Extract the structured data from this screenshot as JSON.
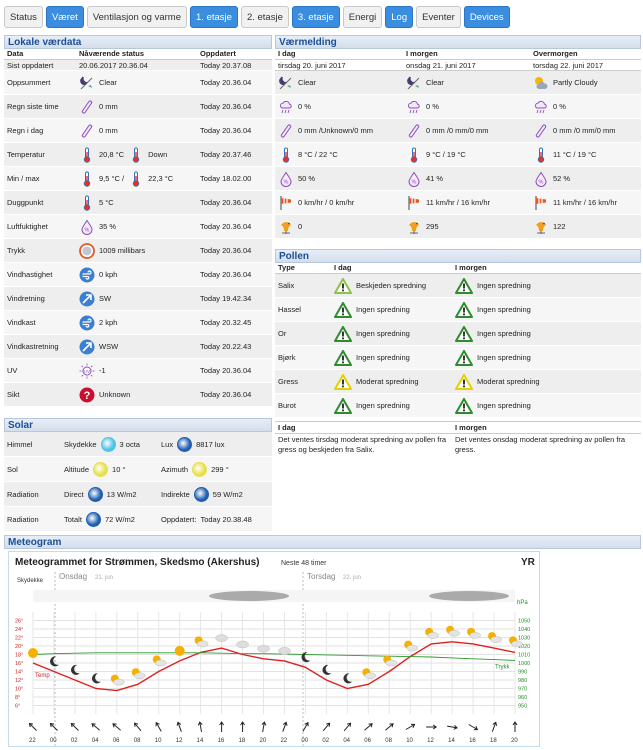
{
  "nav": {
    "tabs": [
      "Status",
      "Været",
      "Ventilasjon og varme",
      "1. etasje",
      "2. etasje",
      "3. etasje",
      "Energi",
      "Log",
      "Eventer",
      "Devices"
    ],
    "active": [
      1,
      3,
      5,
      7,
      9
    ]
  },
  "local": {
    "title": "Lokale værdata",
    "headers": [
      "Data",
      "Nåværende status",
      "Oppdatert"
    ],
    "rows": [
      {
        "label": "Sist oppdatert",
        "value": "20.06.2017 20.36.04",
        "updated": "Today 20.37.08",
        "icon": ""
      },
      {
        "label": "Oppsummert",
        "value": "Clear",
        "updated": "Today 20.36.04",
        "icon": "moon-clear-icon"
      },
      {
        "label": "Regn siste time",
        "value": "0 mm",
        "updated": "Today 20.36.04",
        "icon": "rain-gauge-icon"
      },
      {
        "label": "Regn i dag",
        "value": "0 mm",
        "updated": "Today 20.36.04",
        "icon": "rain-gauge-icon"
      },
      {
        "label": "Temperatur",
        "value": "20,8 °C",
        "value2": "Down",
        "updated": "Today 20.37.46",
        "icon": "thermometer-icon"
      },
      {
        "label": "Min / max",
        "value": "9,5 °C  /",
        "value2": "22,3 °C",
        "updated": "Today 18.02.00",
        "icon": "thermometer-icon"
      },
      {
        "label": "Duggpunkt",
        "value": "5 °C",
        "updated": "Today 20.36.04",
        "icon": "thermometer-icon"
      },
      {
        "label": "Luftfuktighet",
        "value": "35 %",
        "updated": "Today 20.36.04",
        "icon": "humidity-icon"
      },
      {
        "label": "Trykk",
        "value": "1009 millibars",
        "updated": "Today 20.36.04",
        "icon": "barometer-icon"
      },
      {
        "label": "Vindhastighet",
        "value": "0 kph",
        "updated": "Today 20.36.04",
        "icon": "wind-speed-icon"
      },
      {
        "label": "Vindretning",
        "value": "SW",
        "updated": "Today 19.42.34",
        "icon": "wind-direction-icon"
      },
      {
        "label": "Vindkast",
        "value": "2 kph",
        "updated": "Today 20.32.45",
        "icon": "wind-speed-icon"
      },
      {
        "label": "Vindkastretning",
        "value": "WSW",
        "updated": "Today 20.22.43",
        "icon": "wind-direction-icon"
      },
      {
        "label": "UV",
        "value": "-1",
        "updated": "Today 20.36.04",
        "icon": "uv-icon"
      },
      {
        "label": "Sikt",
        "value": "Unknown",
        "updated": "Today 20.36.04",
        "icon": "question-icon"
      }
    ]
  },
  "forecast": {
    "title": "Værmelding",
    "headers": [
      "I dag",
      "I morgen",
      "Overmorgen"
    ],
    "dates": [
      "tirsdag 20. juni 2017",
      "onsdag 21. juni 2017",
      "torsdag 22. juni 2017"
    ],
    "rows": [
      {
        "icon": "moon-clear-icon",
        "values": [
          "Clear",
          "Clear",
          "Partly Cloudy"
        ]
      },
      {
        "icon": "rain-cloud-icon",
        "values": [
          "0 %",
          "0 %",
          "0 %"
        ]
      },
      {
        "icon": "rain-gauge-icon",
        "values": [
          "0 mm /Unknown/0 mm",
          "0 mm /0 mm/0 mm",
          "0 mm /0 mm/0 mm"
        ]
      },
      {
        "icon": "thermometer-icon",
        "values": [
          "8 °C / 22 °C",
          "9 °C / 19 °C",
          "11 °C / 19 °C"
        ]
      },
      {
        "icon": "humidity-icon",
        "values": [
          "50 %",
          "41 %",
          "52 %"
        ]
      },
      {
        "icon": "windsock-icon",
        "values": [
          "0 km/hr  /  0 km/hr",
          "11 km/hr  /  16 km/hr",
          "11 km/hr  /  16 km/hr"
        ]
      },
      {
        "icon": "wind-vane-icon",
        "values": [
          "0",
          "295",
          "122"
        ]
      }
    ]
  },
  "pollen": {
    "title": "Pollen",
    "headers": [
      "Type",
      "I dag",
      "I morgen"
    ],
    "rows": [
      {
        "type": "Salix",
        "today": "Beskjeden spredning",
        "tomorrow": "Ingen spredning",
        "tc": "#8bc34a",
        "mc": "#2e8b2e"
      },
      {
        "type": "Hassel",
        "today": "Ingen spredning",
        "tomorrow": "Ingen spredning",
        "tc": "#2e8b2e",
        "mc": "#2e8b2e"
      },
      {
        "type": "Or",
        "today": "Ingen spredning",
        "tomorrow": "Ingen spredning",
        "tc": "#2e8b2e",
        "mc": "#2e8b2e"
      },
      {
        "type": "Bjørk",
        "today": "Ingen spredning",
        "tomorrow": "Ingen spredning",
        "tc": "#2e8b2e",
        "mc": "#2e8b2e"
      },
      {
        "type": "Gress",
        "today": "Moderat spredning",
        "tomorrow": "Moderat spredning",
        "tc": "#e5d000",
        "mc": "#e5d000"
      },
      {
        "type": "Burot",
        "today": "Ingen spredning",
        "tomorrow": "Ingen spredning",
        "tc": "#2e8b2e",
        "mc": "#2e8b2e"
      }
    ],
    "text_headers": [
      "I dag",
      "I morgen"
    ],
    "texts": [
      "Det ventes tirsdag moderat spredning av pollen fra gress og beskjeden fra Salix.",
      "Det ventes onsdag moderat spredning av pollen fra gress."
    ]
  },
  "solar": {
    "title": "Solar",
    "rows": [
      {
        "label": "Himmel",
        "a_label": "Skydekke",
        "a_value": "3 octa",
        "b_label": "Lux",
        "b_value": "8817 lux",
        "a_color": "#4fc3e8",
        "b_color": "#1f5fb0"
      },
      {
        "label": "Sol",
        "a_label": "Altitude",
        "a_value": "10 °",
        "b_label": "Azimuth",
        "b_value": "299 °",
        "a_color": "#e6e04a",
        "b_color": "#e6e04a"
      },
      {
        "label": "Radiation",
        "a_label": "Direct",
        "a_value": "13 W/m2",
        "b_label": "Indirekte",
        "b_value": "59 W/m2",
        "a_color": "#1f5fb0",
        "b_color": "#1f5fb0"
      },
      {
        "label": "Radiation",
        "a_label": "Totalt",
        "a_value": "72 W/m2",
        "b_label": "Oppdatert:",
        "b_value": "Today 20.38.48",
        "a_color": "#1f5fb0",
        "b_color": ""
      }
    ]
  },
  "meteogram": {
    "title": "Meteogram",
    "heading": "Meteogrammet for Strømmen, Skedsmo (Akershus)",
    "sub": "Neste 48 timer",
    "logo": "YR",
    "cloud_label": "Skydekke",
    "day1": "Onsdag",
    "day1_date": "21. jun",
    "day2": "Torsdag",
    "day2_date": "22. jun",
    "temp_label": "Temp",
    "pressure_label": "Trykk",
    "hpa": "hPa",
    "chart_data": {
      "type": "line",
      "x": [
        "22",
        "00",
        "02",
        "04",
        "06",
        "08",
        "10",
        "12",
        "14",
        "16",
        "18",
        "20",
        "22",
        "00",
        "02",
        "04",
        "06",
        "08",
        "10",
        "12",
        "14",
        "16",
        "18",
        "20"
      ],
      "temp_ticks": [
        "26°",
        "24°",
        "22°",
        "20°",
        "18°",
        "16°",
        "14°",
        "12°",
        "10°",
        "8°",
        "6°"
      ],
      "pressure_ticks": [
        "1050",
        "1040",
        "1030",
        "1020",
        "1010",
        "1000",
        "990",
        "980",
        "970",
        "960",
        "950"
      ],
      "series": [
        {
          "name": "Temp",
          "values": [
            16,
            14,
            12,
            10,
            9.5,
            11,
            14,
            16.5,
            18.5,
            19.5,
            18,
            17,
            16.5,
            15,
            12,
            10,
            11,
            14,
            17.5,
            20.5,
            21,
            20.5,
            19.5,
            18.5
          ]
        },
        {
          "name": "Trykk",
          "values": [
            1010,
            1011,
            1011.5,
            1012,
            1012,
            1012,
            1012,
            1012,
            1012,
            1011.5,
            1011,
            1011,
            1010.5,
            1010,
            1009.5,
            1009,
            1008.5,
            1008,
            1007.5,
            1007,
            1006,
            1005,
            1004,
            1003
          ]
        }
      ],
      "ylim_temp": [
        4,
        28
      ],
      "ylim_pressure": [
        940,
        1060
      ]
    }
  }
}
